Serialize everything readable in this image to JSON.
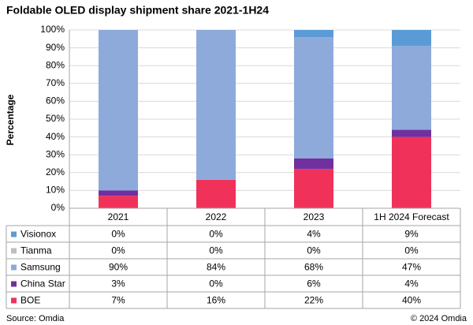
{
  "chart_data": {
    "type": "stacked-bar",
    "title": "Foldable OLED display shipment share 2021-1H24",
    "y_label": "Percentage",
    "categories": [
      "2021",
      "2022",
      "2023",
      "1H 2024 Forecast"
    ],
    "series": [
      {
        "name": "Visionox",
        "color": "#5b9bd5",
        "values": [
          0,
          0,
          4,
          9
        ],
        "value_labels": [
          "0%",
          "0%",
          "4%",
          "9%"
        ]
      },
      {
        "name": "Tianma",
        "color": "#bfbfbf",
        "values": [
          0,
          0,
          0,
          0
        ],
        "value_labels": [
          "0%",
          "0%",
          "0%",
          "0%"
        ]
      },
      {
        "name": "Samsung",
        "color": "#8eaadb",
        "values": [
          90,
          84,
          68,
          47
        ],
        "value_labels": [
          "90%",
          "84%",
          "68%",
          "47%"
        ]
      },
      {
        "name": "China Star",
        "color": "#7030a0",
        "values": [
          3,
          0,
          6,
          4
        ],
        "value_labels": [
          "3%",
          "0%",
          "6%",
          "4%"
        ]
      },
      {
        "name": "BOE",
        "color": "#f0325a",
        "values": [
          7,
          16,
          22,
          40
        ],
        "value_labels": [
          "7%",
          "16%",
          "22%",
          "40%"
        ]
      }
    ],
    "ylim": [
      0,
      100
    ],
    "yticks": [
      {
        "value": 0,
        "label": "0%"
      },
      {
        "value": 10,
        "label": "10%"
      },
      {
        "value": 20,
        "label": "20%"
      },
      {
        "value": 30,
        "label": "30%"
      },
      {
        "value": 40,
        "label": "40%"
      },
      {
        "value": 50,
        "label": "50%"
      },
      {
        "value": 60,
        "label": "60%"
      },
      {
        "value": 70,
        "label": "70%"
      },
      {
        "value": 80,
        "label": "80%"
      },
      {
        "value": 90,
        "label": "90%"
      },
      {
        "value": 100,
        "label": "100%"
      }
    ],
    "grid": true,
    "source": "Source: Omdia",
    "credit": "© 2024 Omdia"
  }
}
